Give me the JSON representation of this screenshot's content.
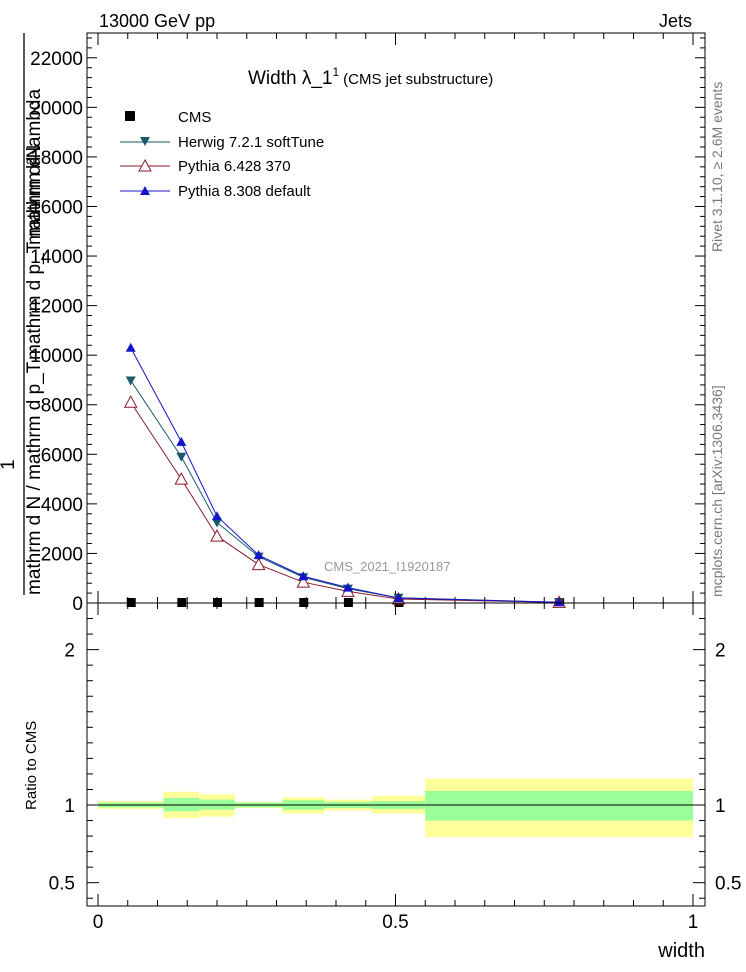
{
  "header": {
    "left": "13000 GeV pp",
    "right": "Jets"
  },
  "side_text": {
    "rivet": "Rivet 3.1.10, ≥ 2.6M events",
    "mcplots": "mcplots.cern.ch [arXiv:1306.3436]"
  },
  "chart_data": [
    {
      "type": "line",
      "title": "Width λ_1",
      "title_superscript": "1",
      "subtitle": "(CMS jet substructure)",
      "analysis_label": "CMS_2021_I1920187",
      "ylabel_overlap_lines": [
        "mathrm d²N",
        "mathrm d p_T mathrm d lambda",
        "mathrm d p_T",
        "mathrm d N / mathrm d p_T"
      ],
      "ylabel_prefix": "1",
      "ylim": [
        0,
        23000
      ],
      "ytick_values": [
        0,
        2000,
        4000,
        6000,
        8000,
        10000,
        12000,
        14000,
        16000,
        18000,
        20000,
        22000
      ],
      "ytick_labels": [
        "0",
        "2000",
        "4000",
        "6000",
        "8000",
        "10000",
        "12000",
        "14000",
        "16000",
        "18000",
        "20000",
        "22000"
      ],
      "xlim": [
        0,
        1
      ],
      "bin_edges": [
        0,
        0.11,
        0.17,
        0.23,
        0.31,
        0.38,
        0.46,
        0.55,
        1.0
      ],
      "x": [
        0.055,
        0.14,
        0.2,
        0.27,
        0.345,
        0.42,
        0.505,
        0.775
      ],
      "series": [
        {
          "name": "CMS",
          "marker": "square",
          "color": "#000000",
          "values": [
            0,
            0,
            0,
            0,
            0,
            0,
            0,
            0
          ]
        },
        {
          "name": "Herwig 7.2.1 softTune",
          "marker": "triangle-down",
          "color": "#1a5a6a",
          "values": [
            8980,
            5900,
            3250,
            1870,
            1040,
            580,
            210,
            30
          ]
        },
        {
          "name": "Pythia 6.428 370",
          "marker": "triangle-up-open",
          "color": "#8b1a2a",
          "values": [
            8100,
            5000,
            2700,
            1550,
            840,
            470,
            160,
            25
          ]
        },
        {
          "name": "Pythia 8.308 default",
          "marker": "triangle-up",
          "color": "#1414c8",
          "values": [
            10300,
            6500,
            3500,
            1930,
            1080,
            620,
            200,
            28
          ]
        }
      ],
      "legend_position": "top-left"
    },
    {
      "type": "area",
      "ylabel": "Ratio to CMS",
      "xlabel": "width",
      "ylim": [
        0.35,
        2.3
      ],
      "ytick_values": [
        0.5,
        1,
        2
      ],
      "ytick_labels": [
        "0.5",
        "1",
        "2"
      ],
      "xtick_values": [
        0,
        0.5,
        1
      ],
      "xtick_labels": [
        "0",
        "0.5",
        "1"
      ],
      "bin_edges": [
        0,
        0.11,
        0.17,
        0.23,
        0.31,
        0.38,
        0.46,
        0.55,
        1.0
      ],
      "stat_band": [
        [
          0.985,
          1.015
        ],
        [
          0.96,
          1.045
        ],
        [
          0.97,
          1.035
        ],
        [
          0.985,
          1.015
        ],
        [
          0.97,
          1.03
        ],
        [
          0.98,
          1.02
        ],
        [
          0.975,
          1.025
        ],
        [
          0.9,
          1.09
        ]
      ],
      "total_band": [
        [
          0.975,
          1.025
        ],
        [
          0.915,
          1.085
        ],
        [
          0.925,
          1.07
        ],
        [
          0.98,
          1.02
        ],
        [
          0.945,
          1.05
        ],
        [
          0.965,
          1.035
        ],
        [
          0.945,
          1.06
        ],
        [
          0.795,
          1.17
        ]
      ],
      "stat_color": "#99ff99",
      "total_color": "#ffff99"
    }
  ]
}
